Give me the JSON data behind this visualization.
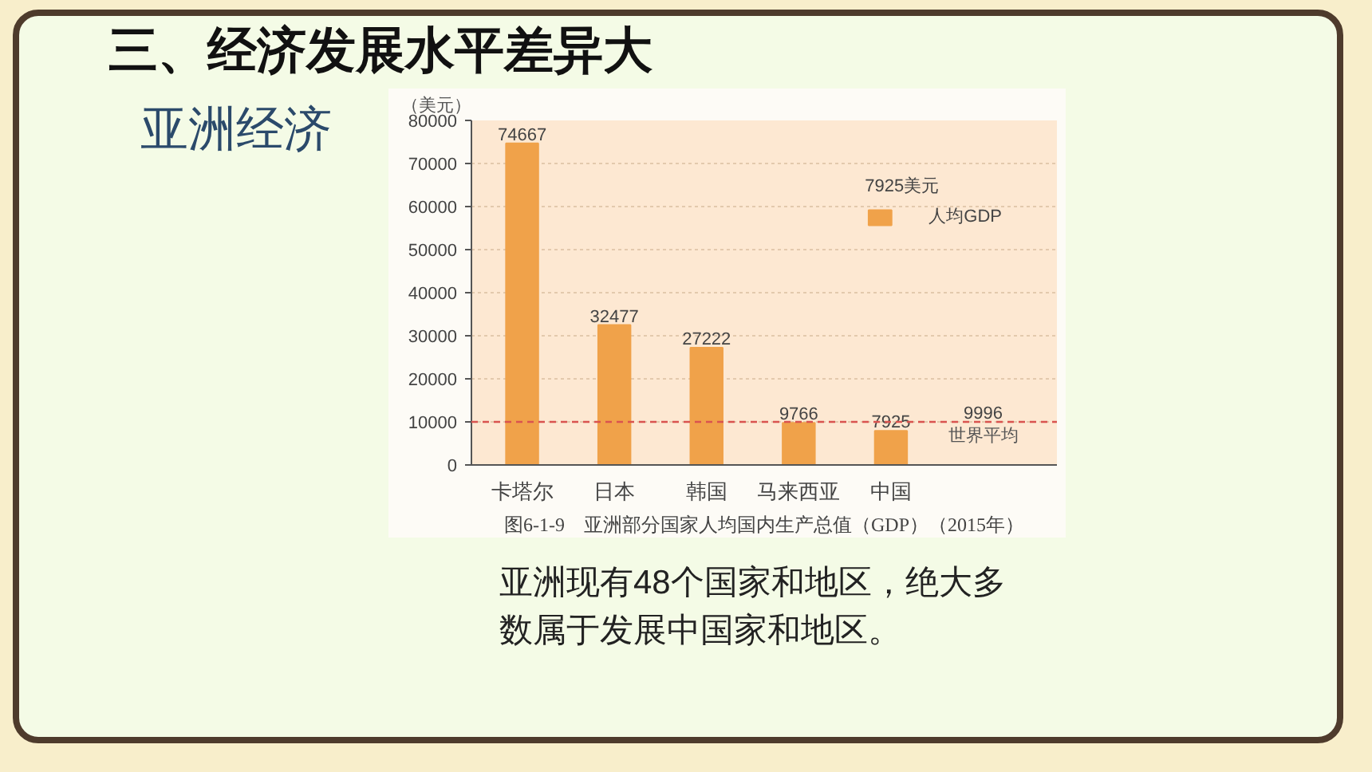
{
  "chart_data": {
    "type": "bar",
    "title": "三、经济发展水平差异大",
    "subtitle": "亚洲经济",
    "ylabel": "（美元）",
    "legend_title": "7925美元",
    "categories": [
      "卡塔尔",
      "日本",
      "韩国",
      "马来西亚",
      "中国"
    ],
    "series": [
      {
        "name": "人均GDP",
        "color": "#f0a24a",
        "values": [
          74667,
          32477,
          27222,
          9766,
          7925
        ]
      }
    ],
    "ylim": [
      0,
      80000
    ],
    "yticks": [
      0,
      10000,
      20000,
      30000,
      40000,
      50000,
      60000,
      70000,
      80000
    ],
    "grid": "y",
    "legend": "top right",
    "data_labels": true,
    "ref_lines": [
      {
        "axis": "y",
        "value": 9996,
        "label": "世界平均",
        "color": "#d9534f",
        "line_style": "dashed"
      }
    ],
    "annotations": [
      {
        "text": "9996",
        "y": 9996
      },
      "图6-1-9　亚洲部分国家人均国内生产总值（GDP）（2015年）",
      "亚洲现有48个国家和地区，绝大多数属于发展中国家和地区。"
    ]
  }
}
